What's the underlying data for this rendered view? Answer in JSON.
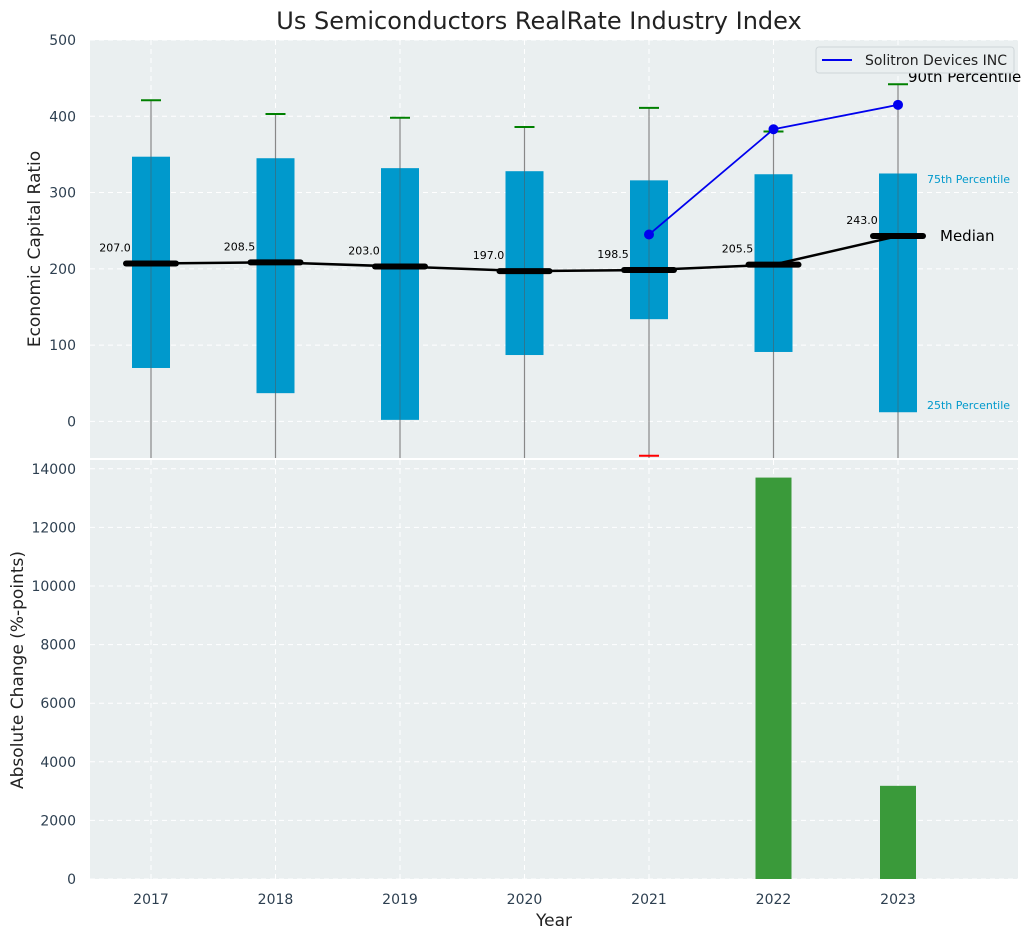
{
  "chart_data": [
    {
      "type": "box",
      "title": "Us Semiconductors RealRate Industry Index",
      "xlabel": "",
      "ylabel": "Economic Capital Ratio",
      "ylim": [
        -48,
        500
      ],
      "yticks": [
        0,
        100,
        200,
        300,
        400,
        500
      ],
      "categories": [
        "2017",
        "2018",
        "2019",
        "2020",
        "2021",
        "2022",
        "2023"
      ],
      "boxes": [
        {
          "year": "2017",
          "q1": 70,
          "median": 207.0,
          "q3": 347,
          "p90": 421
        },
        {
          "year": "2018",
          "q1": 37,
          "median": 208.5,
          "q3": 345,
          "p90": 403
        },
        {
          "year": "2019",
          "q1": 2,
          "median": 203.0,
          "q3": 332,
          "p90": 398
        },
        {
          "year": "2020",
          "q1": 87,
          "median": 197.0,
          "q3": 328,
          "p90": 386
        },
        {
          "year": "2021",
          "q1": 134,
          "median": 198.5,
          "q3": 316,
          "p90": 411,
          "p10": -45
        },
        {
          "year": "2022",
          "q1": 91,
          "median": 205.5,
          "q3": 324,
          "p90": 380
        },
        {
          "year": "2023",
          "q1": 12,
          "median": 243.0,
          "q3": 325,
          "p90": 442
        }
      ],
      "median_labels": [
        "207.0",
        "208.5",
        "203.0",
        "197.0",
        "198.5",
        "205.5",
        "243.0"
      ],
      "series": [
        {
          "name": "Solitron Devices INC",
          "x": [
            "2021",
            "2022",
            "2023"
          ],
          "values": [
            245,
            383,
            415
          ]
        }
      ],
      "annotations": {
        "p90": "90th Percentile",
        "p75": "75th Percentile",
        "median": "Median",
        "p25": "25th Percentile"
      },
      "legend": {
        "placement": "top-right",
        "label": "Solitron Devices INC"
      },
      "colors": {
        "box": "#0099cc",
        "median": "#000000",
        "series": "#0000ee",
        "p90": "#008000",
        "p10": "#ff0000",
        "background": "#eaeff0"
      },
      "grid": true
    },
    {
      "type": "bar",
      "xlabel": "Year",
      "ylabel": "Absolute Change (%-points)",
      "categories": [
        "2017",
        "2018",
        "2019",
        "2020",
        "2021",
        "2022",
        "2023"
      ],
      "values": [
        0,
        0,
        0,
        0,
        0,
        13700,
        3180
      ],
      "ylim": [
        0,
        14300
      ],
      "yticks": [
        0,
        2000,
        4000,
        6000,
        8000,
        10000,
        12000,
        14000
      ],
      "colors": {
        "bar": "#3a9a3a"
      },
      "grid": true
    }
  ]
}
